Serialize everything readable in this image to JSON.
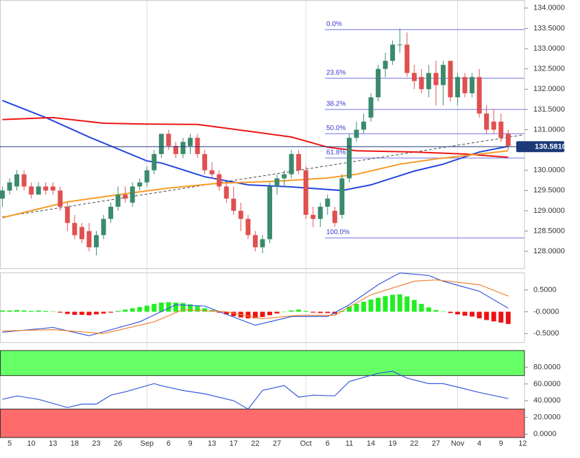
{
  "chart_data": [
    {
      "type": "candlestick",
      "xlim": [
        -0.33,
        72.25
      ],
      "ylim": [
        127.58,
        134.2
      ],
      "yticks": [
        {
          "value": 128.0,
          "label": "128.0000"
        },
        {
          "value": 128.5,
          "label": "128.5000"
        },
        {
          "value": 129.0,
          "label": "129.0000"
        },
        {
          "value": 129.5,
          "label": "129.5000"
        },
        {
          "value": 130.0,
          "label": "130.0000"
        },
        {
          "value": 130.5,
          "label": "130.5000"
        },
        {
          "value": 131.0,
          "label": "131.0000"
        },
        {
          "value": 131.5,
          "label": "131.5000"
        },
        {
          "value": 132.0,
          "label": "132.0000"
        },
        {
          "value": 132.5,
          "label": "132.5000"
        },
        {
          "value": 133.0,
          "label": "133.0000"
        },
        {
          "value": 133.5,
          "label": "133.5000"
        },
        {
          "value": 134.0,
          "label": "134.0000"
        }
      ],
      "up_color": "#3b8a6c",
      "down_color": "#e0504f",
      "ohlc": [
        [
          129.3,
          129.6,
          129.1,
          129.5
        ],
        [
          129.5,
          129.8,
          129.4,
          129.7
        ],
        [
          129.6,
          130.0,
          129.5,
          129.9
        ],
        [
          129.9,
          130.0,
          129.5,
          129.6
        ],
        [
          129.6,
          129.7,
          129.3,
          129.4
        ],
        [
          129.4,
          129.7,
          129.4,
          129.6
        ],
        [
          129.6,
          129.7,
          129.4,
          129.5
        ],
        [
          129.6,
          129.7,
          129.4,
          129.5
        ],
        [
          129.5,
          129.6,
          129.0,
          129.1
        ],
        [
          129.1,
          129.2,
          128.5,
          128.7
        ],
        [
          128.7,
          128.9,
          128.3,
          128.4
        ],
        [
          128.6,
          128.7,
          128.2,
          128.3
        ],
        [
          128.5,
          128.7,
          128.0,
          128.1
        ],
        [
          128.1,
          128.5,
          127.9,
          128.4
        ],
        [
          128.4,
          128.9,
          128.3,
          128.8
        ],
        [
          128.8,
          129.2,
          128.7,
          129.1
        ],
        [
          129.1,
          129.6,
          129.0,
          129.4
        ],
        [
          129.4,
          129.6,
          129.2,
          129.3
        ],
        [
          129.2,
          129.7,
          129.1,
          129.6
        ],
        [
          129.6,
          129.8,
          129.5,
          129.7
        ],
        [
          129.7,
          130.1,
          129.6,
          130.0
        ],
        [
          130.0,
          130.5,
          129.9,
          130.4
        ],
        [
          130.4,
          130.9,
          130.3,
          130.9
        ],
        [
          130.9,
          131.0,
          130.5,
          130.6
        ],
        [
          130.6,
          130.7,
          130.3,
          130.4
        ],
        [
          130.4,
          130.8,
          130.3,
          130.7
        ],
        [
          130.6,
          130.9,
          130.4,
          130.8
        ],
        [
          130.8,
          130.9,
          130.3,
          130.4
        ],
        [
          130.4,
          130.5,
          129.9,
          130.0
        ],
        [
          130.0,
          130.2,
          129.8,
          129.9
        ],
        [
          129.9,
          130.0,
          129.5,
          129.6
        ],
        [
          129.6,
          129.7,
          129.2,
          129.3
        ],
        [
          129.3,
          129.6,
          128.9,
          129.0
        ],
        [
          129.0,
          129.2,
          128.5,
          128.8
        ],
        [
          128.8,
          128.9,
          128.3,
          128.4
        ],
        [
          128.4,
          128.5,
          128.0,
          128.1
        ],
        [
          128.1,
          128.4,
          127.95,
          128.3
        ],
        [
          128.3,
          129.7,
          128.2,
          129.6
        ],
        [
          129.6,
          129.9,
          129.4,
          129.8
        ],
        [
          129.8,
          130.0,
          129.6,
          129.9
        ],
        [
          129.9,
          130.5,
          129.8,
          130.4
        ],
        [
          130.4,
          130.5,
          129.9,
          130.0
        ],
        [
          130.0,
          130.1,
          128.8,
          128.9
        ],
        [
          128.9,
          129.1,
          128.6,
          128.8
        ],
        [
          128.8,
          129.2,
          128.6,
          129.1
        ],
        [
          129.1,
          129.4,
          128.9,
          129.3
        ],
        [
          129.0,
          129.1,
          128.6,
          128.7
        ],
        [
          128.9,
          129.9,
          128.8,
          129.8
        ],
        [
          129.8,
          130.9,
          129.7,
          130.8
        ],
        [
          130.8,
          131.2,
          130.7,
          131.0
        ],
        [
          131.0,
          131.4,
          130.9,
          131.2
        ],
        [
          131.3,
          131.9,
          131.2,
          131.8
        ],
        [
          131.8,
          132.6,
          131.7,
          132.5
        ],
        [
          132.5,
          132.9,
          132.3,
          132.7
        ],
        [
          132.7,
          133.2,
          132.6,
          133.1
        ],
        [
          133.1,
          133.5,
          132.9,
          133.1
        ],
        [
          133.1,
          133.4,
          132.3,
          132.4
        ],
        [
          132.4,
          132.6,
          132.0,
          132.2
        ],
        [
          132.3,
          132.5,
          131.9,
          132.0
        ],
        [
          132.0,
          132.6,
          131.8,
          132.4
        ],
        [
          132.4,
          132.7,
          131.6,
          132.1
        ],
        [
          132.1,
          132.7,
          131.6,
          132.6
        ],
        [
          132.7,
          132.7,
          131.7,
          131.8
        ],
        [
          131.8,
          132.4,
          131.6,
          132.3
        ],
        [
          132.3,
          132.4,
          131.8,
          131.9
        ],
        [
          131.9,
          132.4,
          131.8,
          132.3
        ],
        [
          132.3,
          132.5,
          131.3,
          131.4
        ],
        [
          131.4,
          131.6,
          130.9,
          131.0
        ],
        [
          131.2,
          131.5,
          130.9,
          131.0
        ],
        [
          131.2,
          131.4,
          130.7,
          130.8
        ],
        [
          130.9,
          131.0,
          130.5,
          130.6
        ]
      ],
      "series": [
        {
          "color": "#2244dd",
          "x": [
            0,
            6,
            12,
            20,
            22,
            28,
            34,
            40,
            47,
            51,
            57,
            61,
            66,
            70
          ],
          "values": [
            131.72,
            131.3,
            130.82,
            130.23,
            130.18,
            129.84,
            129.64,
            129.59,
            129.5,
            129.64,
            129.98,
            130.15,
            130.45,
            130.59
          ]
        },
        {
          "color": "#ee1111",
          "x": [
            0,
            7,
            14,
            20,
            27,
            33,
            40,
            45,
            49,
            57,
            64,
            70
          ],
          "values": [
            131.25,
            131.3,
            131.16,
            131.14,
            131.13,
            130.99,
            130.82,
            130.57,
            130.48,
            130.45,
            130.4,
            130.32
          ]
        },
        {
          "color": "#f59a23",
          "x": [
            0,
            9,
            17,
            23,
            30,
            38,
            45,
            49,
            55,
            60,
            66,
            70
          ],
          "values": [
            128.83,
            129.22,
            129.42,
            129.56,
            129.68,
            129.73,
            129.81,
            129.9,
            130.15,
            130.28,
            130.4,
            130.48
          ]
        }
      ],
      "trendline": {
        "x": [
          0,
          72
        ],
        "values": [
          128.85,
          130.87
        ]
      },
      "fib_levels": [
        {
          "label": "0.0%",
          "value": 133.47
        },
        {
          "label": "23.6%",
          "value": 132.27
        },
        {
          "label": "38.2%",
          "value": 131.5
        },
        {
          "label": "50.0%",
          "value": 130.9
        },
        {
          "label": "61.8%",
          "value": 130.3
        },
        {
          "label": "100.0%",
          "value": 128.33
        }
      ],
      "last_price": {
        "value": 130.581,
        "label": "130.5810"
      }
    },
    {
      "type": "macd",
      "xlim": [
        -0.33,
        72.25
      ],
      "ylim": [
        -0.7,
        0.9
      ],
      "yticks": [
        {
          "value": 0.5,
          "label": "0.5000"
        },
        {
          "value": 0,
          "label": "-0.0000"
        },
        {
          "value": -0.5,
          "label": "-0.5000"
        }
      ],
      "up_color": "#22ee22",
      "down_color": "#ee1111",
      "histogram": [
        0.03,
        0.03,
        0.04,
        0.03,
        0.02,
        0.03,
        0.02,
        0.01,
        -0.02,
        -0.05,
        -0.07,
        -0.07,
        -0.08,
        -0.06,
        -0.04,
        -0.02,
        0.02,
        0.05,
        0.08,
        0.11,
        0.14,
        0.18,
        0.21,
        0.22,
        0.21,
        0.2,
        0.17,
        0.13,
        0.08,
        0.04,
        -0.02,
        -0.06,
        -0.1,
        -0.13,
        -0.15,
        -0.15,
        -0.12,
        -0.08,
        -0.04,
        0.0,
        0.03,
        0.05,
        0.02,
        -0.02,
        -0.03,
        -0.03,
        -0.05,
        0.02,
        0.12,
        0.18,
        0.23,
        0.28,
        0.32,
        0.36,
        0.39,
        0.4,
        0.35,
        0.27,
        0.18,
        0.1,
        0.04,
        0.01,
        -0.03,
        -0.06,
        -0.09,
        -0.11,
        -0.15,
        -0.19,
        -0.22,
        -0.25,
        -0.28
      ],
      "series": [
        {
          "color": "#3355dd",
          "x": [
            0,
            7,
            12,
            19,
            24,
            28,
            35,
            40,
            45,
            48,
            52,
            55,
            59,
            61,
            66,
            70
          ],
          "values": [
            -0.47,
            -0.36,
            -0.55,
            -0.23,
            0.16,
            0.13,
            -0.31,
            -0.11,
            -0.11,
            0.16,
            0.62,
            0.89,
            0.83,
            0.7,
            0.47,
            0.08
          ]
        },
        {
          "color": "#f08030",
          "x": [
            0,
            7,
            14,
            21,
            25,
            31,
            36,
            41,
            46,
            51,
            57,
            60,
            66,
            70
          ],
          "values": [
            -0.44,
            -0.41,
            -0.5,
            -0.23,
            0.05,
            0.0,
            -0.16,
            -0.08,
            -0.08,
            0.39,
            0.7,
            0.73,
            0.62,
            0.36
          ]
        }
      ]
    },
    {
      "type": "rsi",
      "xlim": [
        -0.33,
        72.25
      ],
      "ylim": [
        -4,
        100
      ],
      "yticks": [
        {
          "value": 80,
          "label": "80.0000"
        },
        {
          "value": 60,
          "label": "60.0000"
        },
        {
          "value": 40,
          "label": "40.0000"
        },
        {
          "value": 20,
          "label": "20.0000"
        },
        {
          "value": 0,
          "label": "0.0000"
        }
      ],
      "overbought": 70,
      "oversold": 30,
      "overbought_color": "#66ff66",
      "oversold_color": "#ff6b6b",
      "series": [
        {
          "color": "#3355dd",
          "x": [
            0,
            2,
            5,
            9,
            11,
            13,
            15,
            17,
            21,
            22,
            25,
            28,
            32,
            34,
            36,
            39,
            41,
            43,
            46,
            48,
            52,
            54,
            56,
            59,
            61,
            63,
            66,
            70
          ],
          "values": [
            41.6,
            45.7,
            41.6,
            31.8,
            35.9,
            35.9,
            46.6,
            50.6,
            60.4,
            57.9,
            52.2,
            48.2,
            40,
            30,
            52.3,
            58.1,
            44.2,
            46.6,
            45.8,
            62.9,
            72.7,
            75.2,
            67,
            60.4,
            60.4,
            56.3,
            49.8,
            42.5
          ]
        }
      ],
      "xticks": [
        {
          "value": 1,
          "label": "5"
        },
        {
          "value": 4,
          "label": "10"
        },
        {
          "value": 7,
          "label": "13"
        },
        {
          "value": 10,
          "label": "18"
        },
        {
          "value": 13,
          "label": "23"
        },
        {
          "value": 16,
          "label": "26"
        },
        {
          "value": 20,
          "label": "Sep"
        },
        {
          "value": 23,
          "label": "6"
        },
        {
          "value": 26,
          "label": "9"
        },
        {
          "value": 29,
          "label": "13"
        },
        {
          "value": 32,
          "label": "17"
        },
        {
          "value": 35,
          "label": "22"
        },
        {
          "value": 38,
          "label": "27"
        },
        {
          "value": 42,
          "label": "Oct"
        },
        {
          "value": 45,
          "label": "6"
        },
        {
          "value": 48,
          "label": "11"
        },
        {
          "value": 51,
          "label": "14"
        },
        {
          "value": 54,
          "label": "19"
        },
        {
          "value": 57,
          "label": "22"
        },
        {
          "value": 60,
          "label": "27"
        },
        {
          "value": 63,
          "label": "Nov"
        },
        {
          "value": 66,
          "label": "4"
        },
        {
          "value": 69,
          "label": "9"
        },
        {
          "value": 72,
          "label": "12"
        }
      ]
    }
  ]
}
